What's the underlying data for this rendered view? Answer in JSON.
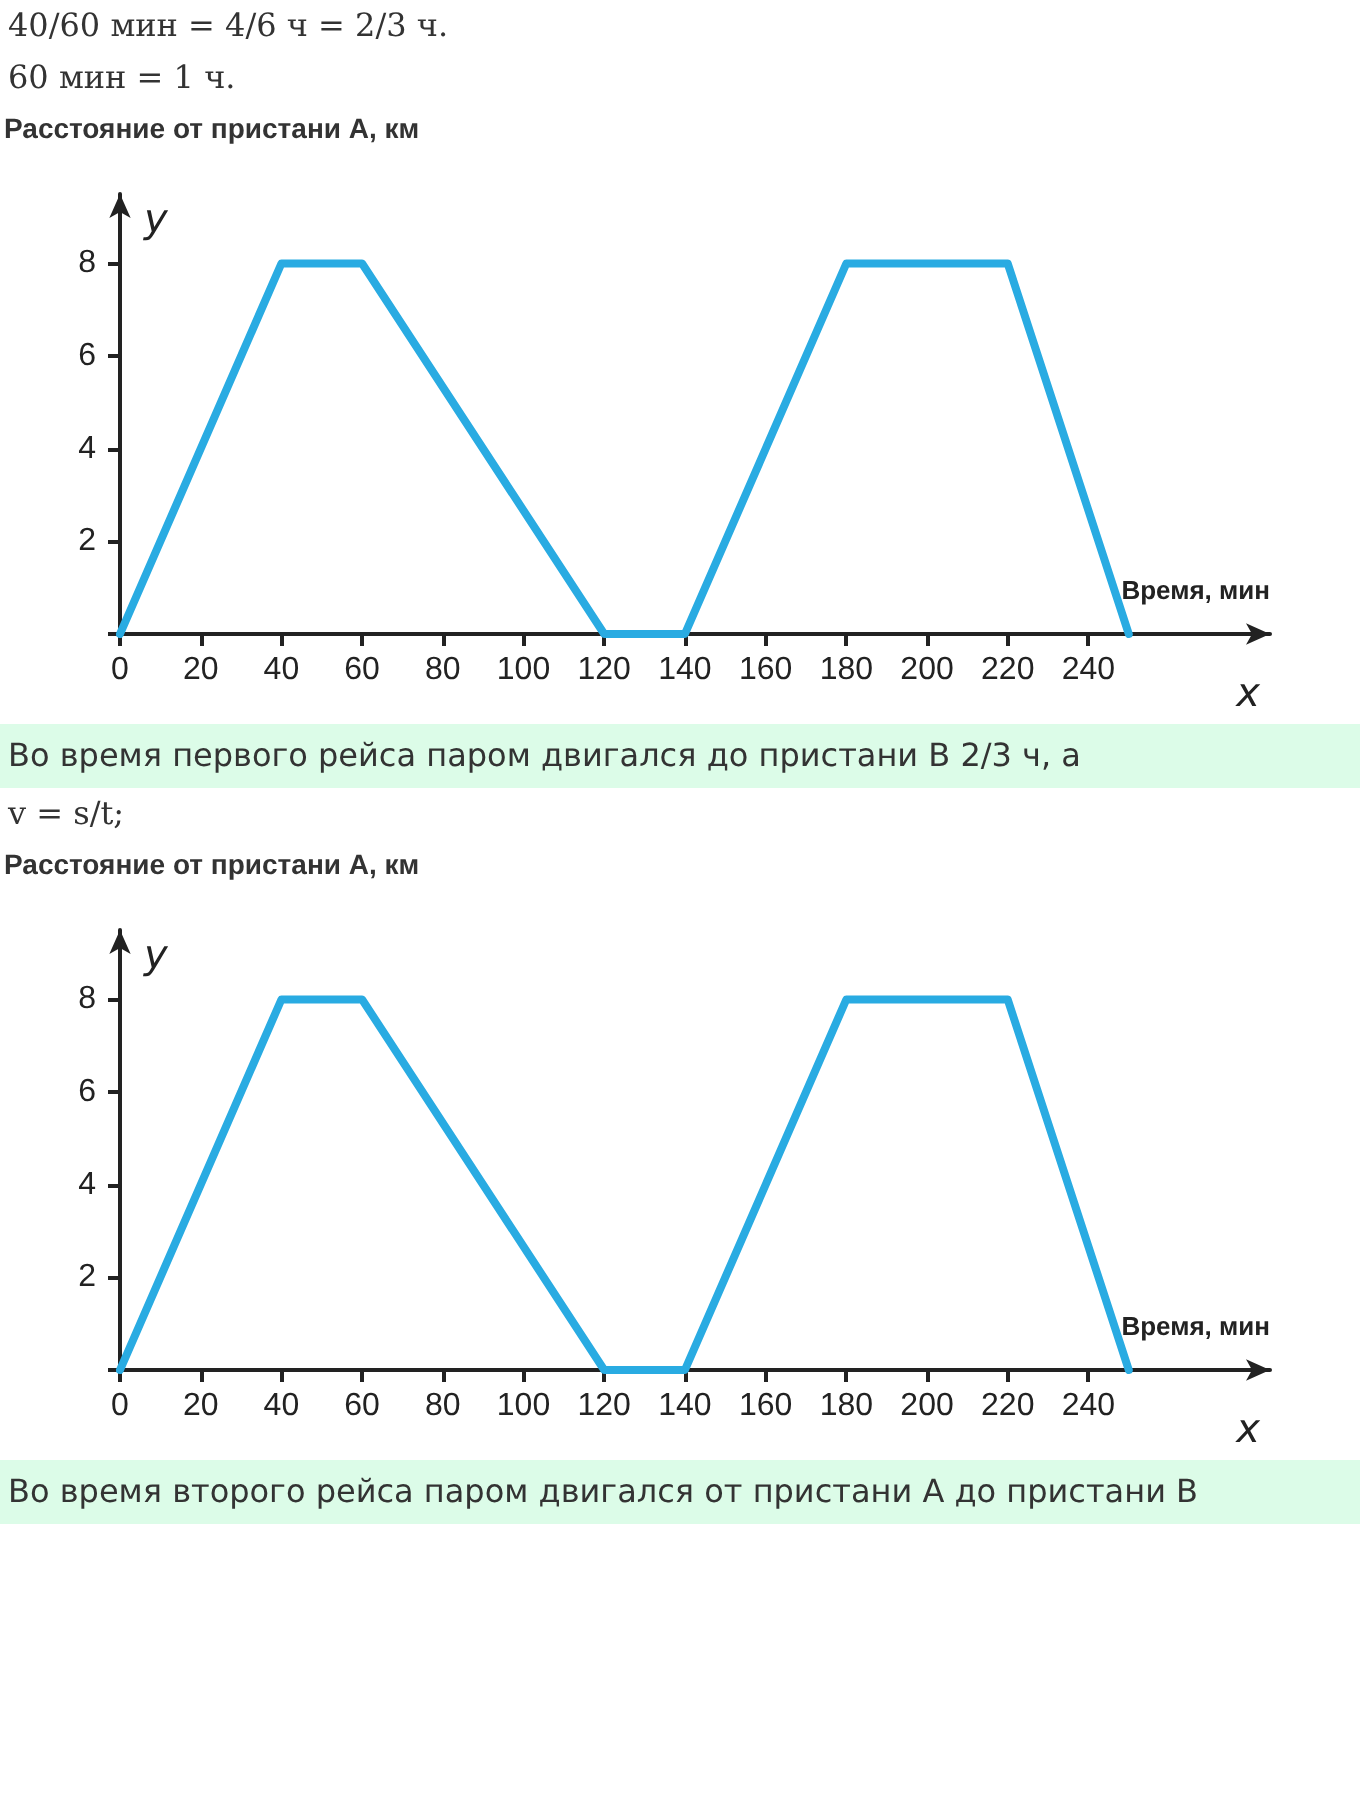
{
  "chart_data": [
    {
      "type": "line",
      "title": "Расстояние от пристани А, км",
      "ylabel": "y",
      "xlabel": "Время, мин",
      "annotations": [
        "x",
        "40/60 мин = 4/6 ч = 2/3 ч.",
        "60 мин = 1 ч."
      ],
      "x": [
        0,
        40,
        60,
        120,
        140,
        180,
        220,
        250
      ],
      "series": [
        {
          "color": "#29abe2",
          "values": [
            0,
            8,
            8,
            0,
            0,
            8,
            8,
            0
          ]
        }
      ],
      "xlim": [
        0,
        285
      ],
      "xticks": [
        0,
        20,
        40,
        60,
        80,
        100,
        120,
        140,
        160,
        180,
        200,
        220,
        240
      ],
      "ylim": [
        0,
        9.5
      ],
      "yticks": [
        {
          "value": 0,
          "label": null
        },
        2,
        4,
        6,
        8
      ],
      "grid": false,
      "marker": "none",
      "line_style": "solid"
    },
    {
      "type": "line",
      "title": "Расстояние от пристани А, км",
      "ylabel": "y",
      "xlabel": "Время, мин",
      "annotations": [
        "x",
        "Во время первого рейса паром двигался до пристани B 2/3 ч, а",
        "v = s/t;",
        "Во время второго рейса паром двигался от пристани A до пристани B"
      ],
      "x": [
        0,
        40,
        60,
        120,
        140,
        180,
        220,
        250
      ],
      "series": [
        {
          "color": "#29abe2",
          "values": [
            0,
            8,
            8,
            0,
            0,
            8,
            8,
            0
          ]
        }
      ],
      "xlim": [
        0,
        285
      ],
      "xticks": [
        0,
        20,
        40,
        60,
        80,
        100,
        120,
        140,
        160,
        180,
        200,
        220,
        240
      ],
      "ylim": [
        0,
        9.5
      ],
      "yticks": [
        {
          "value": 0,
          "label": null
        },
        2,
        4,
        6,
        8
      ],
      "grid": false,
      "marker": "none",
      "line_style": "solid"
    }
  ]
}
